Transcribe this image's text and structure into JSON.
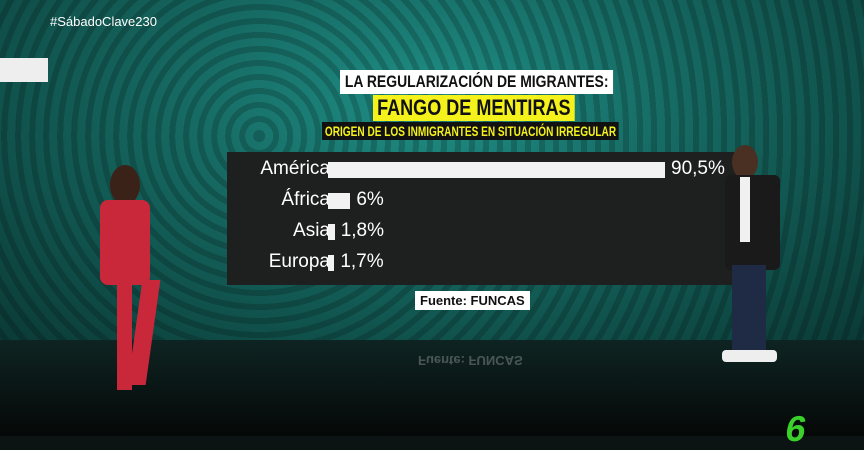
{
  "broadcast": {
    "hashtag": "#SábadoClave230",
    "logo": "laSexta"
  },
  "chart_data": {
    "type": "bar",
    "orientation": "horizontal",
    "title": "LA REGULARIZACIÓN DE MIGRANTES:",
    "headline": "FANGO DE MENTIRAS",
    "subtitle": "ORIGEN DE LOS INMIGRANTES EN SITUACIÓN IRREGULAR",
    "categories": [
      "América",
      "África",
      "Asia",
      "Europa"
    ],
    "values": [
      90.5,
      6,
      1.8,
      1.7
    ],
    "labels": [
      "90,5%",
      "6%",
      "1,8%",
      "1,7%"
    ],
    "source": "Fuente: FUNCAS",
    "bar_color": "#f2f2f2",
    "background": "#1e1f1f",
    "headline_color": "#f4f21a"
  }
}
